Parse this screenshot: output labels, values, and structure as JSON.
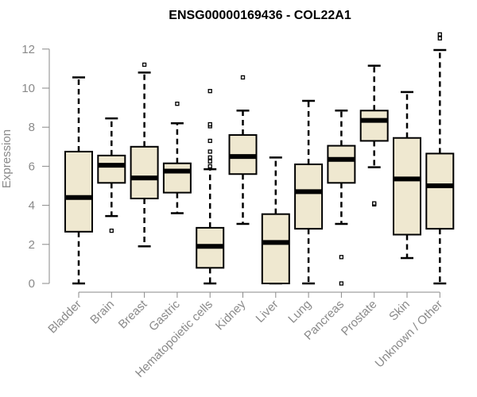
{
  "chart_data": {
    "type": "boxplot",
    "title": "ENSG00000169436 - COL22A1",
    "xlabel": "",
    "ylabel": "Expression",
    "ylim": [
      0,
      12.5
    ],
    "yticks": [
      0,
      2,
      4,
      6,
      8,
      10,
      12
    ],
    "grid": false,
    "legend": "none",
    "box_fill": "#efe8d0",
    "box_stroke": "#000000",
    "axis_color": "#8a8a8a",
    "categories": [
      "Bladder",
      "Brain",
      "Breast",
      "Gastric",
      "Hematopoietic cells",
      "Kidney",
      "Liver",
      "Lung",
      "Pancreas",
      "Prostate",
      "Skin",
      "Unknown / Other"
    ],
    "boxes": [
      {
        "category": "Bladder",
        "low": 0.0,
        "q1": 2.65,
        "median": 4.4,
        "q3": 6.75,
        "high": 10.55,
        "outliers": []
      },
      {
        "category": "Brain",
        "low": 3.45,
        "q1": 5.15,
        "median": 6.05,
        "q3": 6.55,
        "high": 8.45,
        "outliers": [
          2.7
        ]
      },
      {
        "category": "Breast",
        "low": 1.9,
        "q1": 4.35,
        "median": 5.4,
        "q3": 7.0,
        "high": 10.8,
        "outliers": [
          11.2
        ]
      },
      {
        "category": "Gastric",
        "low": 3.6,
        "q1": 4.65,
        "median": 5.75,
        "q3": 6.15,
        "high": 8.2,
        "outliers": [
          9.2
        ]
      },
      {
        "category": "Hematopoietic cells",
        "low": 0.0,
        "q1": 0.8,
        "median": 1.9,
        "q3": 2.85,
        "high": 5.85,
        "outliers": [
          6.0,
          6.25,
          6.45,
          6.75,
          7.3,
          8.05,
          8.15,
          9.85
        ]
      },
      {
        "category": "Kidney",
        "low": 3.05,
        "q1": 5.6,
        "median": 6.5,
        "q3": 7.6,
        "high": 8.85,
        "outliers": [
          10.55
        ]
      },
      {
        "category": "Liver",
        "low": 0.0,
        "q1": 0.0,
        "median": 2.1,
        "q3": 3.55,
        "high": 6.45,
        "outliers": []
      },
      {
        "category": "Lung",
        "low": 0.0,
        "q1": 2.8,
        "median": 4.7,
        "q3": 6.1,
        "high": 9.35,
        "outliers": []
      },
      {
        "category": "Pancreas",
        "low": 3.05,
        "q1": 5.15,
        "median": 6.35,
        "q3": 7.05,
        "high": 8.85,
        "outliers": [
          0.0,
          1.35
        ]
      },
      {
        "category": "Prostate",
        "low": 5.95,
        "q1": 7.3,
        "median": 8.35,
        "q3": 8.85,
        "high": 11.15,
        "outliers": [
          4.05,
          4.1
        ]
      },
      {
        "category": "Skin",
        "low": 1.3,
        "q1": 2.5,
        "median": 5.35,
        "q3": 7.45,
        "high": 9.8,
        "outliers": []
      },
      {
        "category": "Unknown / Other",
        "low": 0.0,
        "q1": 2.8,
        "median": 5.0,
        "q3": 6.65,
        "high": 11.95,
        "outliers": [
          12.55,
          12.75
        ]
      }
    ]
  }
}
